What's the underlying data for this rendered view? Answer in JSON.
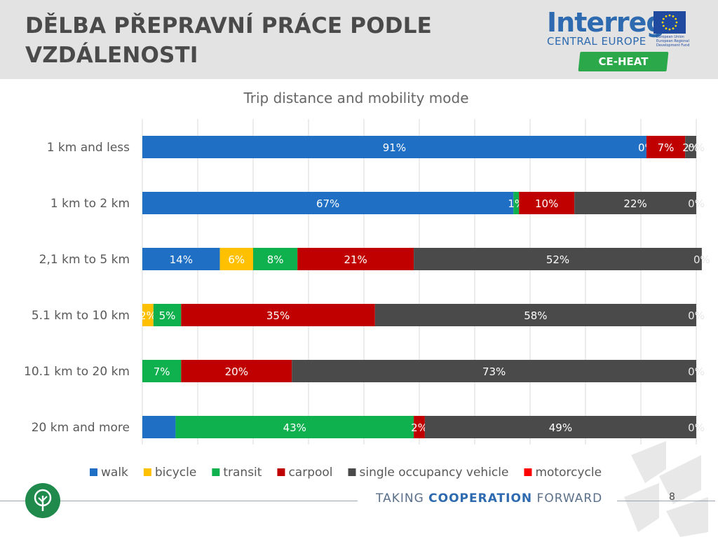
{
  "slide": {
    "title_line1": "DĚLBA PŘEPRAVNÍ PRÁCE PODLE",
    "title_line2": "VZDÁLENOSTI",
    "page_number": "8"
  },
  "logo": {
    "word": "Interreg",
    "sub": "CENTRAL EUROPE",
    "eu_text": "European Union European Regional Development Fund",
    "badge": "CE-HEAT"
  },
  "footer": {
    "tag_prefix": "TAKING ",
    "tag_bold": "COOPERATION",
    "tag_suffix": " FORWARD"
  },
  "colors": {
    "walk": "#1f6fc5",
    "bicycle": "#ffc000",
    "transit": "#0fb14f",
    "carpool": "#c00000",
    "single occupancy vehicle": "#4a4a4a",
    "motorcycle": "#ff0000"
  },
  "chart_data": {
    "type": "bar",
    "orientation": "horizontal-stacked",
    "title": "Trip distance and mobility mode",
    "categories": [
      "1 km and less",
      "1 km to 2 km",
      "2,1 km to 5 km",
      "5.1  km to 10 km",
      "10.1  km to 20  km",
      "20  km and more"
    ],
    "series": [
      {
        "name": "walk",
        "values": [
          91,
          67,
          14,
          0,
          0,
          6
        ],
        "labels": [
          "91%",
          "67%",
          "14%",
          "",
          "",
          ""
        ]
      },
      {
        "name": "bicycle",
        "values": [
          0,
          0,
          6,
          2,
          0,
          0
        ],
        "labels": [
          "0%",
          "",
          "6%",
          "2%",
          "",
          ""
        ]
      },
      {
        "name": "transit",
        "values": [
          0,
          1,
          8,
          5,
          7,
          43
        ],
        "labels": [
          "",
          "1%",
          "8%",
          "5%",
          "7%",
          "43%"
        ]
      },
      {
        "name": "carpool",
        "values": [
          7,
          10,
          21,
          35,
          20,
          2
        ],
        "labels": [
          "7%",
          "10%",
          "21%",
          "35%",
          "20%",
          "2%"
        ]
      },
      {
        "name": "single occupancy vehicle",
        "values": [
          2,
          22,
          52,
          58,
          73,
          49
        ],
        "labels": [
          "2%",
          "22%",
          "52%",
          "58%",
          "73%",
          "49%"
        ]
      },
      {
        "name": "motorcycle",
        "values": [
          0,
          0,
          0,
          0,
          0,
          0
        ],
        "labels": [
          "0%",
          "0%",
          "0%",
          "0%",
          "0%",
          "0%"
        ]
      }
    ],
    "xlim": [
      0,
      100
    ],
    "grid": true,
    "legend": "bottom"
  }
}
